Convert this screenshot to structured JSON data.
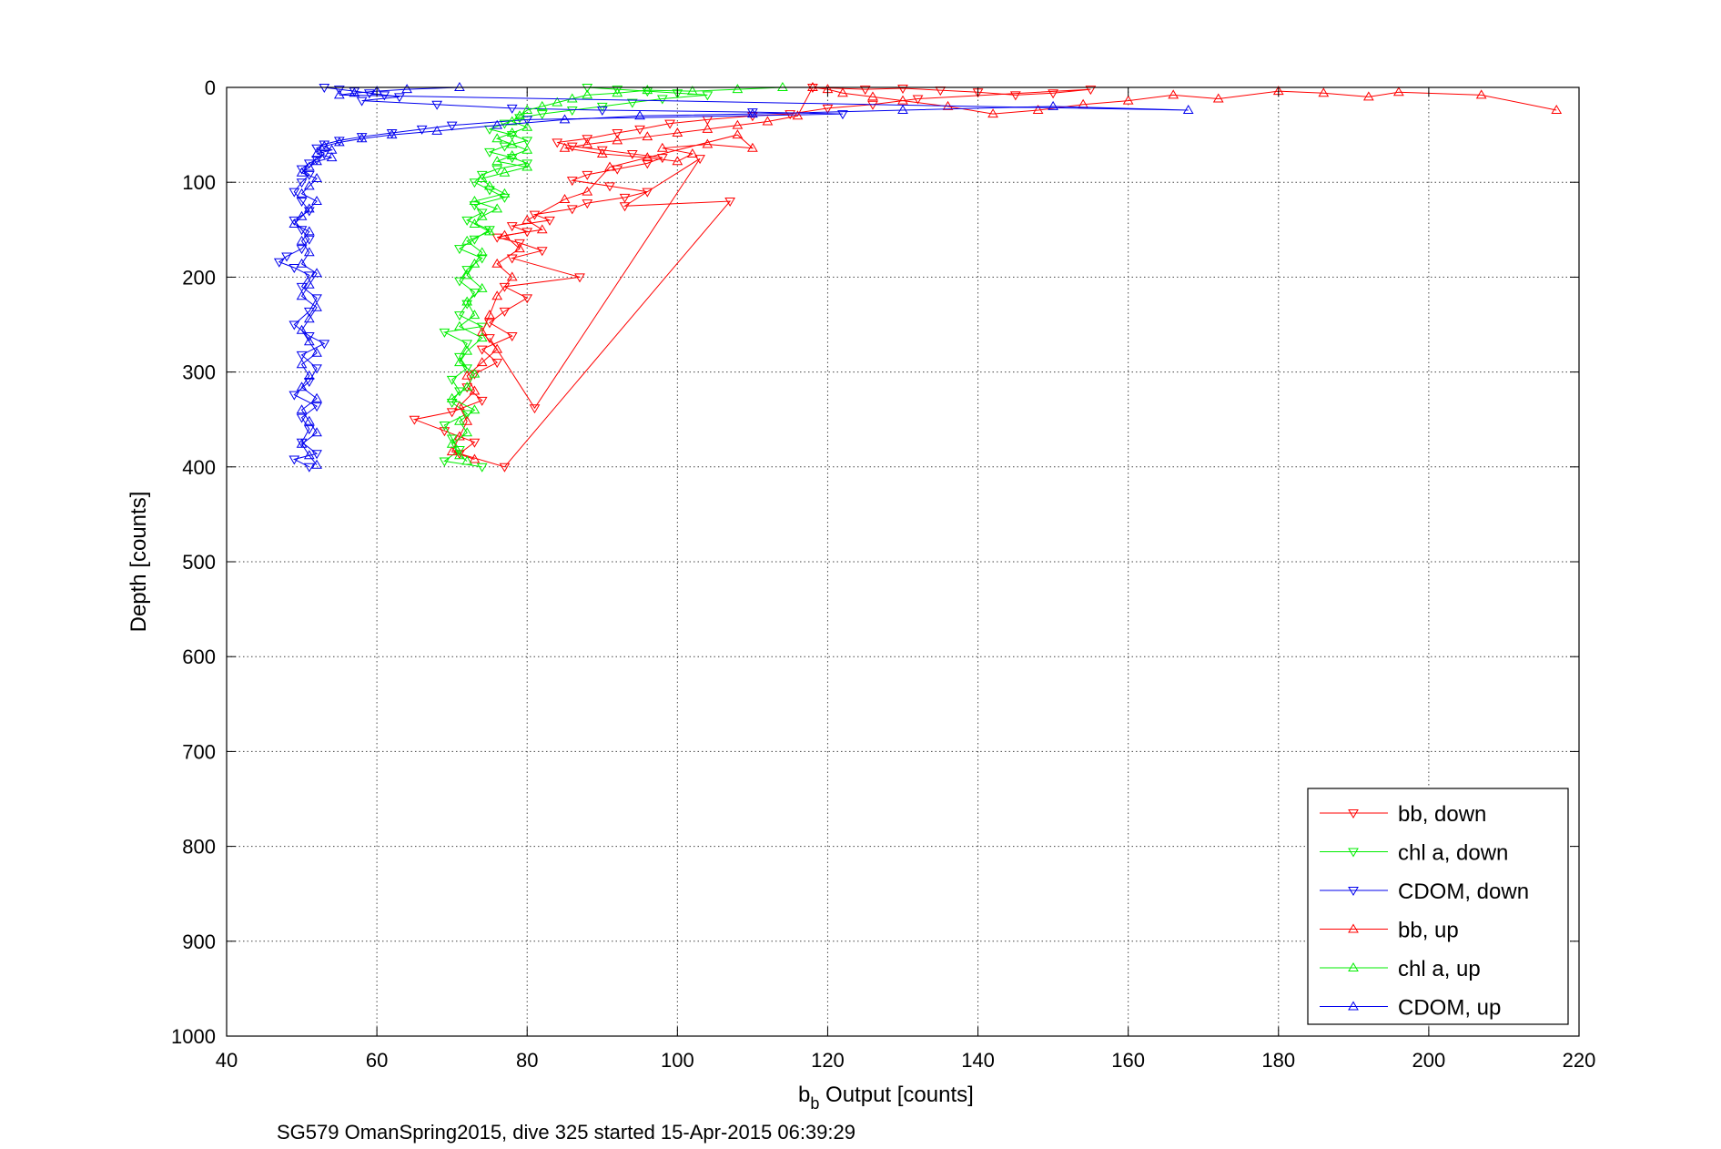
{
  "chart_data": {
    "type": "scatter",
    "xlabel_base": "b",
    "xlabel_sub": "b",
    "xlabel_rest": " Output [counts]",
    "ylabel": "Depth [counts]",
    "caption": "SG579 OmanSpring2015, dive 325 started 15-Apr-2015 06:39:29",
    "xlim": [
      40,
      220
    ],
    "ylim": [
      0,
      1000
    ],
    "y_reversed": true,
    "grid": true,
    "legend_position": "bottom-right",
    "xticks": [
      40,
      60,
      80,
      100,
      120,
      140,
      160,
      180,
      200,
      220
    ],
    "yticks": [
      0,
      100,
      200,
      300,
      400,
      500,
      600,
      700,
      800,
      900,
      1000
    ],
    "series": [
      {
        "name": "bb, down",
        "color": "#ff0000",
        "marker": "triangle-down",
        "points": [
          [
            118,
            0
          ],
          [
            125,
            2
          ],
          [
            130,
            1
          ],
          [
            135,
            3
          ],
          [
            140,
            5
          ],
          [
            145,
            8
          ],
          [
            150,
            6
          ],
          [
            155,
            2
          ],
          [
            132,
            12
          ],
          [
            126,
            18
          ],
          [
            120,
            22
          ],
          [
            115,
            28
          ],
          [
            110,
            30
          ],
          [
            104,
            34
          ],
          [
            99,
            38
          ],
          [
            95,
            44
          ],
          [
            92,
            48
          ],
          [
            88,
            54
          ],
          [
            84,
            58
          ],
          [
            86,
            62
          ],
          [
            90,
            66
          ],
          [
            94,
            70
          ],
          [
            98,
            74
          ],
          [
            96,
            80
          ],
          [
            92,
            86
          ],
          [
            88,
            92
          ],
          [
            86,
            98
          ],
          [
            91,
            104
          ],
          [
            96,
            110
          ],
          [
            93,
            116
          ],
          [
            88,
            122
          ],
          [
            86,
            128
          ],
          [
            81,
            134
          ],
          [
            83,
            140
          ],
          [
            78,
            146
          ],
          [
            80,
            152
          ],
          [
            76,
            158
          ],
          [
            79,
            164
          ],
          [
            82,
            172
          ],
          [
            78,
            180
          ],
          [
            87,
            200
          ],
          [
            77,
            210
          ],
          [
            80,
            222
          ],
          [
            77,
            236
          ],
          [
            75,
            248
          ],
          [
            78,
            262
          ],
          [
            74,
            276
          ],
          [
            76,
            290
          ],
          [
            73,
            302
          ],
          [
            72,
            316
          ],
          [
            74,
            330
          ],
          [
            70,
            342
          ],
          [
            65,
            350
          ],
          [
            69,
            362
          ],
          [
            73,
            374
          ],
          [
            71,
            386
          ],
          [
            77,
            400
          ],
          [
            107,
            120
          ],
          [
            93,
            125
          ],
          [
            103,
            75
          ],
          [
            81,
            338
          ],
          [
            75,
            264
          ]
        ]
      },
      {
        "name": "chl a, down",
        "color": "#00ee00",
        "marker": "triangle-down",
        "points": [
          [
            88,
            0
          ],
          [
            92,
            2
          ],
          [
            96,
            4
          ],
          [
            100,
            6
          ],
          [
            104,
            8
          ],
          [
            98,
            12
          ],
          [
            94,
            16
          ],
          [
            90,
            20
          ],
          [
            86,
            24
          ],
          [
            82,
            28
          ],
          [
            79,
            32
          ],
          [
            77,
            38
          ],
          [
            75,
            44
          ],
          [
            78,
            50
          ],
          [
            80,
            56
          ],
          [
            77,
            62
          ],
          [
            75,
            68
          ],
          [
            78,
            74
          ],
          [
            80,
            80
          ],
          [
            76,
            86
          ],
          [
            74,
            92
          ],
          [
            73,
            100
          ],
          [
            75,
            108
          ],
          [
            77,
            116
          ],
          [
            73,
            124
          ],
          [
            74,
            132
          ],
          [
            72,
            140
          ],
          [
            75,
            150
          ],
          [
            73,
            160
          ],
          [
            71,
            170
          ],
          [
            74,
            180
          ],
          [
            72,
            192
          ],
          [
            71,
            204
          ],
          [
            73,
            216
          ],
          [
            72,
            228
          ],
          [
            71,
            240
          ],
          [
            74,
            252
          ],
          [
            69,
            258
          ],
          [
            72,
            270
          ],
          [
            71,
            284
          ],
          [
            72,
            296
          ],
          [
            70,
            308
          ],
          [
            71,
            320
          ],
          [
            70,
            332
          ],
          [
            72,
            344
          ],
          [
            69,
            356
          ],
          [
            70,
            370
          ],
          [
            71,
            382
          ],
          [
            69,
            394
          ],
          [
            74,
            400
          ]
        ]
      },
      {
        "name": "CDOM, down",
        "color": "#0000ee",
        "marker": "triangle-down",
        "points": [
          [
            53,
            0
          ],
          [
            55,
            2
          ],
          [
            57,
            4
          ],
          [
            59,
            6
          ],
          [
            61,
            8
          ],
          [
            63,
            10
          ],
          [
            58,
            14
          ],
          [
            68,
            18
          ],
          [
            78,
            22
          ],
          [
            90,
            24
          ],
          [
            110,
            26
          ],
          [
            122,
            28
          ],
          [
            80,
            34
          ],
          [
            70,
            40
          ],
          [
            66,
            44
          ],
          [
            62,
            48
          ],
          [
            58,
            52
          ],
          [
            55,
            56
          ],
          [
            53,
            60
          ],
          [
            52,
            64
          ],
          [
            53,
            70
          ],
          [
            52,
            76
          ],
          [
            51,
            80
          ],
          [
            50,
            86
          ],
          [
            51,
            92
          ],
          [
            50,
            100
          ],
          [
            49,
            110
          ],
          [
            50,
            120
          ],
          [
            51,
            130
          ],
          [
            49,
            140
          ],
          [
            50,
            150
          ],
          [
            51,
            160
          ],
          [
            50,
            170
          ],
          [
            48,
            178
          ],
          [
            47,
            184
          ],
          [
            49,
            190
          ],
          [
            51,
            198
          ],
          [
            50,
            210
          ],
          [
            52,
            222
          ],
          [
            51,
            236
          ],
          [
            49,
            250
          ],
          [
            51,
            262
          ],
          [
            53,
            270
          ],
          [
            50,
            282
          ],
          [
            52,
            296
          ],
          [
            51,
            310
          ],
          [
            49,
            324
          ],
          [
            52,
            336
          ],
          [
            50,
            348
          ],
          [
            51,
            360
          ],
          [
            50,
            374
          ],
          [
            52,
            386
          ],
          [
            49,
            392
          ],
          [
            51,
            400
          ]
        ]
      },
      {
        "name": "bb, up",
        "color": "#ff0000",
        "marker": "triangle-up",
        "points": [
          [
            217,
            24
          ],
          [
            207,
            8
          ],
          [
            196,
            5
          ],
          [
            192,
            10
          ],
          [
            186,
            6
          ],
          [
            180,
            4
          ],
          [
            172,
            12
          ],
          [
            166,
            8
          ],
          [
            160,
            14
          ],
          [
            154,
            18
          ],
          [
            148,
            24
          ],
          [
            142,
            28
          ],
          [
            136,
            20
          ],
          [
            130,
            14
          ],
          [
            126,
            10
          ],
          [
            122,
            6
          ],
          [
            120,
            2
          ],
          [
            118,
            0
          ],
          [
            116,
            30
          ],
          [
            112,
            36
          ],
          [
            108,
            40
          ],
          [
            104,
            44
          ],
          [
            100,
            48
          ],
          [
            96,
            52
          ],
          [
            92,
            56
          ],
          [
            88,
            60
          ],
          [
            85,
            64
          ],
          [
            90,
            70
          ],
          [
            96,
            74
          ],
          [
            100,
            78
          ],
          [
            102,
            70
          ],
          [
            98,
            64
          ],
          [
            104,
            60
          ],
          [
            110,
            64
          ],
          [
            108,
            50
          ],
          [
            91,
            84
          ],
          [
            88,
            110
          ],
          [
            85,
            118
          ],
          [
            80,
            140
          ],
          [
            82,
            150
          ],
          [
            77,
            156
          ],
          [
            79,
            170
          ],
          [
            76,
            186
          ],
          [
            78,
            200
          ],
          [
            76,
            220
          ],
          [
            75,
            240
          ],
          [
            74,
            258
          ],
          [
            76,
            276
          ],
          [
            74,
            290
          ],
          [
            72,
            304
          ],
          [
            73,
            320
          ],
          [
            71,
            336
          ],
          [
            72,
            352
          ],
          [
            71,
            368
          ],
          [
            70,
            384
          ],
          [
            73,
            392
          ]
        ]
      },
      {
        "name": "chl a, up",
        "color": "#00ee00",
        "marker": "triangle-up",
        "points": [
          [
            114,
            0
          ],
          [
            108,
            2
          ],
          [
            102,
            4
          ],
          [
            96,
            3
          ],
          [
            92,
            6
          ],
          [
            88,
            8
          ],
          [
            86,
            12
          ],
          [
            84,
            16
          ],
          [
            82,
            20
          ],
          [
            80,
            24
          ],
          [
            79,
            30
          ],
          [
            78,
            36
          ],
          [
            80,
            42
          ],
          [
            78,
            48
          ],
          [
            76,
            54
          ],
          [
            78,
            60
          ],
          [
            80,
            66
          ],
          [
            78,
            72
          ],
          [
            76,
            78
          ],
          [
            80,
            84
          ],
          [
            77,
            90
          ],
          [
            74,
            96
          ],
          [
            75,
            104
          ],
          [
            77,
            112
          ],
          [
            73,
            120
          ],
          [
            76,
            128
          ],
          [
            74,
            136
          ],
          [
            73,
            144
          ],
          [
            75,
            152
          ],
          [
            72,
            162
          ],
          [
            74,
            174
          ],
          [
            73,
            186
          ],
          [
            72,
            198
          ],
          [
            74,
            212
          ],
          [
            72,
            226
          ],
          [
            73,
            240
          ],
          [
            71,
            252
          ],
          [
            74,
            264
          ],
          [
            72,
            278
          ],
          [
            71,
            290
          ],
          [
            73,
            302
          ],
          [
            72,
            316
          ],
          [
            70,
            328
          ],
          [
            73,
            340
          ],
          [
            71,
            352
          ],
          [
            72,
            364
          ],
          [
            70,
            376
          ],
          [
            71,
            388
          ],
          [
            72,
            394
          ]
        ]
      },
      {
        "name": "CDOM, up",
        "color": "#0000ee",
        "marker": "triangle-up",
        "points": [
          [
            71,
            0
          ],
          [
            64,
            2
          ],
          [
            60,
            4
          ],
          [
            57,
            6
          ],
          [
            55,
            8
          ],
          [
            168,
            24
          ],
          [
            150,
            20
          ],
          [
            130,
            24
          ],
          [
            110,
            28
          ],
          [
            95,
            30
          ],
          [
            85,
            34
          ],
          [
            76,
            40
          ],
          [
            68,
            46
          ],
          [
            62,
            50
          ],
          [
            58,
            54
          ],
          [
            55,
            58
          ],
          [
            53,
            62
          ],
          [
            54,
            66
          ],
          [
            52,
            70
          ],
          [
            54,
            74
          ],
          [
            52,
            78
          ],
          [
            51,
            84
          ],
          [
            50,
            90
          ],
          [
            52,
            96
          ],
          [
            51,
            104
          ],
          [
            50,
            112
          ],
          [
            52,
            120
          ],
          [
            51,
            128
          ],
          [
            50,
            136
          ],
          [
            49,
            144
          ],
          [
            51,
            152
          ],
          [
            50,
            162
          ],
          [
            51,
            174
          ],
          [
            50,
            186
          ],
          [
            52,
            196
          ],
          [
            51,
            208
          ],
          [
            50,
            220
          ],
          [
            52,
            232
          ],
          [
            51,
            244
          ],
          [
            50,
            256
          ],
          [
            51,
            268
          ],
          [
            52,
            280
          ],
          [
            50,
            292
          ],
          [
            51,
            304
          ],
          [
            50,
            316
          ],
          [
            52,
            328
          ],
          [
            50,
            340
          ],
          [
            51,
            352
          ],
          [
            52,
            364
          ],
          [
            50,
            376
          ],
          [
            51,
            388
          ],
          [
            52,
            398
          ]
        ]
      }
    ]
  }
}
